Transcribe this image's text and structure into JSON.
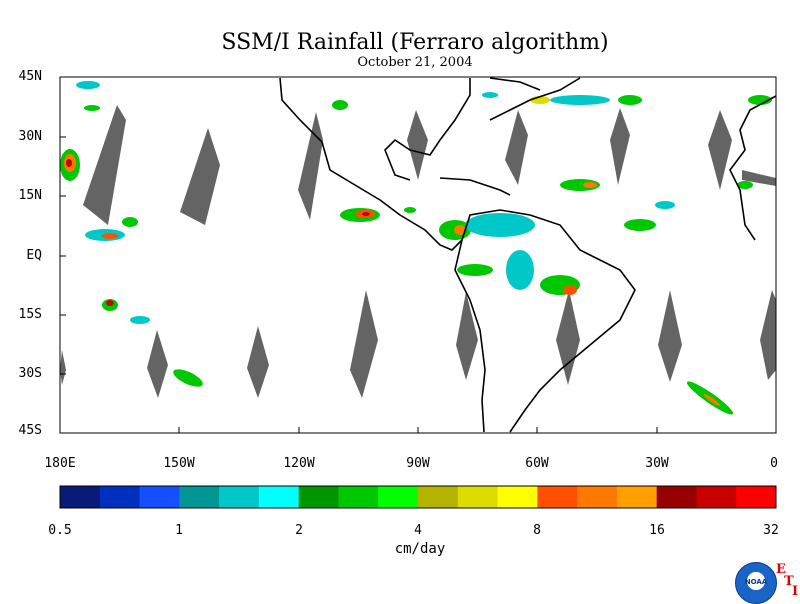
{
  "title": "SSM/I Rainfall (Ferraro algorithm)",
  "date": "October 21, 2004",
  "axes": {
    "lat_labels": [
      "45N",
      "30N",
      "15N",
      "EQ",
      "15S",
      "30S",
      "45S"
    ],
    "lon_labels": [
      "180E",
      "150W",
      "120W",
      "90W",
      "60W",
      "30W",
      "0"
    ]
  },
  "colorbar": {
    "ticks": [
      "0.5",
      "1",
      "2",
      "4",
      "8",
      "16",
      "32"
    ],
    "units": "cm/day",
    "colors": [
      "#0a1a78",
      "#0030c0",
      "#1450ff",
      "#009696",
      "#00c8c8",
      "#00ffff",
      "#009600",
      "#00c800",
      "#00ff00",
      "#b4b400",
      "#dcdc00",
      "#ffff00",
      "#ff5000",
      "#ff7800",
      "#ffa000",
      "#960000",
      "#c80000",
      "#ff0000"
    ]
  },
  "map": {
    "land_outline_color": "#000000",
    "no_data_swath_color": "#646464",
    "background": "#ffffff"
  },
  "branding": {
    "logo_name": "noaa-logo",
    "logo_text": "NOAA",
    "corner_letters": [
      "E",
      "T",
      "I"
    ]
  }
}
